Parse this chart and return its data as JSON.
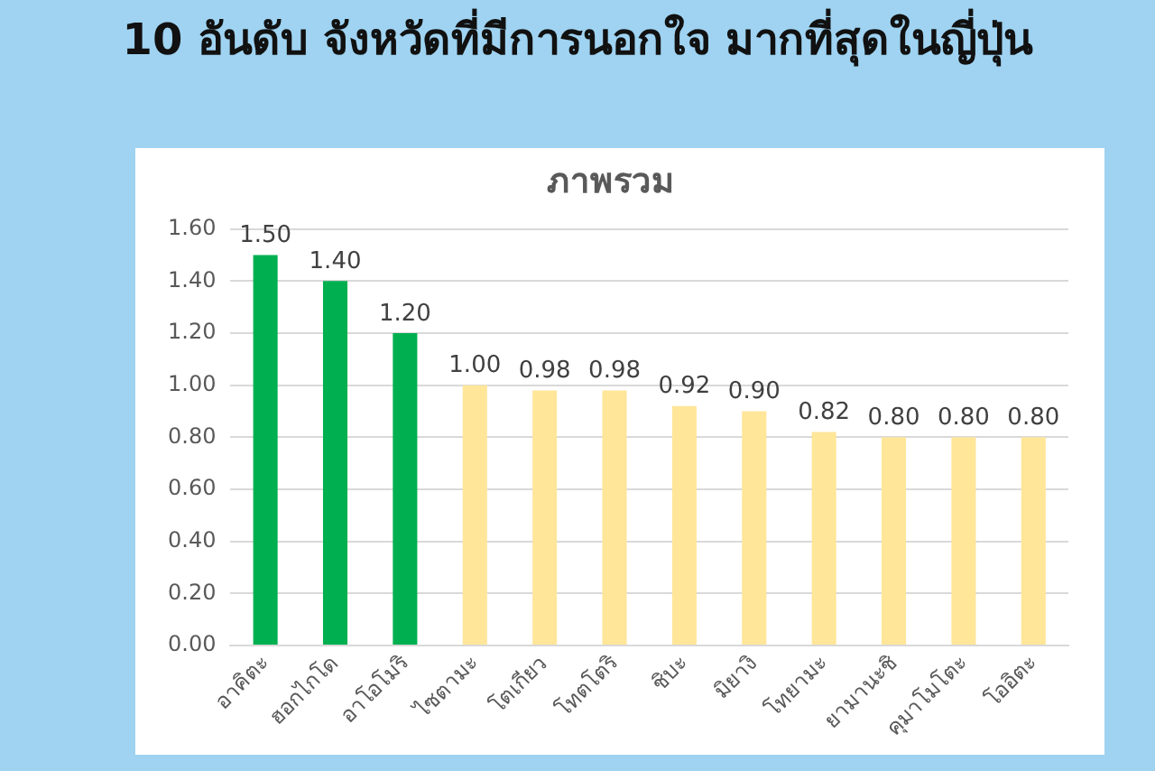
{
  "chart_data": {
    "type": "bar",
    "title": "10 อันดับ จังหวัดที่มีการนอกใจ มากที่สุดในญี่ปุ่น",
    "subtitle": "ภาพรวม",
    "categories": [
      "อาคิตะ",
      "ฮอกไกโด",
      "อาโอโมริ",
      "ไซตามะ",
      "โตเกียว",
      "โทตโตริ",
      "ชิบะ",
      "มิยางิ",
      "โทยามะ",
      "ยามานะชิ",
      "คุมาโมโตะ",
      "โออิตะ"
    ],
    "values": [
      1.5,
      1.4,
      1.2,
      1.0,
      0.98,
      0.98,
      0.92,
      0.9,
      0.82,
      0.8,
      0.8,
      0.8
    ],
    "colors": [
      "#00b050",
      "#00b050",
      "#00b050",
      "#ffe699",
      "#ffe699",
      "#ffe699",
      "#ffe699",
      "#ffe699",
      "#ffe699",
      "#ffe699",
      "#ffe699",
      "#ffe699"
    ],
    "value_labels": [
      "1.50",
      "1.40",
      "1.20",
      "1.00",
      "0.98",
      "0.98",
      "0.92",
      "0.90",
      "0.82",
      "0.80",
      "0.80",
      "0.80"
    ],
    "ylim": [
      0,
      1.6
    ],
    "yticks": [
      {
        "value": 0,
        "label": "0.00"
      },
      {
        "value": 0.2,
        "label": "0.20"
      },
      {
        "value": 0.4,
        "label": "0.40"
      },
      {
        "value": 0.6,
        "label": "0.60"
      },
      {
        "value": 0.8,
        "label": "0.80"
      },
      {
        "value": 1.0,
        "label": "1.00"
      },
      {
        "value": 1.2,
        "label": "1.20"
      },
      {
        "value": 1.4,
        "label": "1.40"
      },
      {
        "value": 1.6,
        "label": "1.60"
      }
    ],
    "grid": "y"
  }
}
